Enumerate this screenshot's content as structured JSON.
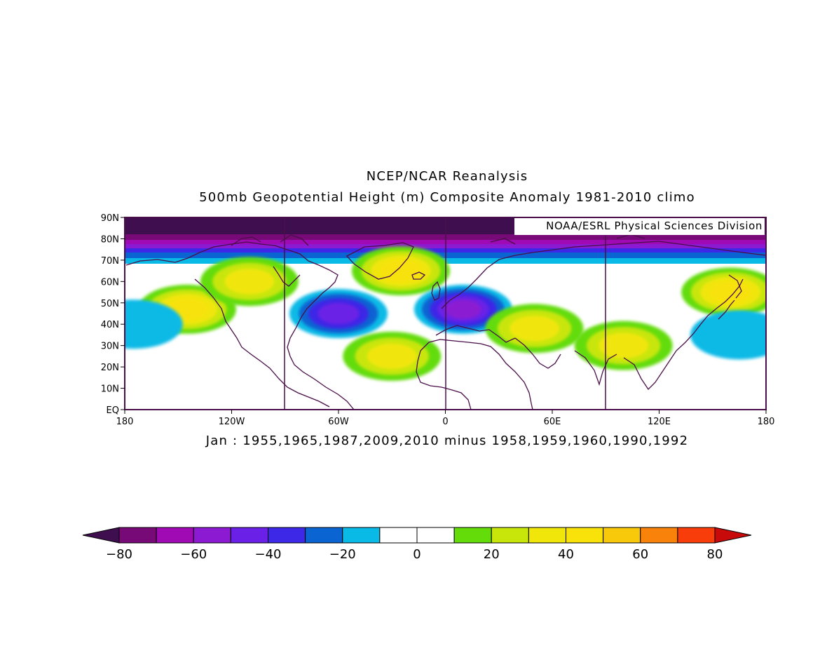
{
  "title_line1": "NCEP/NCAR Reanalysis",
  "title_line2": "500mb Geopotential Height (m) Composite Anomaly 1981-2010 climo",
  "credit": "NOAA/ESRL Physical Sciences Division",
  "subtitle": "Jan : 1955,1965,1987,2009,2010 minus 1958,1959,1960,1990,1992",
  "map": {
    "lon_range": [
      -180,
      180
    ],
    "lat_range": [
      0,
      90
    ],
    "lon_tick_labels": [
      "180",
      "120W",
      "60W",
      "0",
      "60E",
      "120E",
      "180"
    ],
    "lat_tick_labels": [
      "EQ",
      "10N",
      "20N",
      "30N",
      "40N",
      "50N",
      "60N",
      "70N",
      "80N",
      "90N"
    ],
    "anomaly_centers": [
      {
        "lon": -145,
        "lat": 47,
        "value": 45
      },
      {
        "lon": -110,
        "lat": 60,
        "value": 38
      },
      {
        "lon": -60,
        "lat": 45,
        "value": -45
      },
      {
        "lon": -25,
        "lat": 65,
        "value": 45
      },
      {
        "lon": -30,
        "lat": 25,
        "value": 35
      },
      {
        "lon": 10,
        "lat": 47,
        "value": -55
      },
      {
        "lon": 50,
        "lat": 38,
        "value": 35
      },
      {
        "lon": 100,
        "lat": 30,
        "value": 30
      },
      {
        "lon": 160,
        "lat": 55,
        "value": 42
      },
      {
        "lon": 165,
        "lat": 35,
        "value": -15
      },
      {
        "lon": -175,
        "lat": 40,
        "value": -15
      }
    ]
  },
  "colorbar": {
    "labels": [
      "-80",
      "-60",
      "-40",
      "-20",
      "0",
      "20",
      "40",
      "60",
      "80"
    ],
    "colors": [
      "#3e0e4e",
      "#780a78",
      "#a00ab4",
      "#8c1ad2",
      "#6a20e6",
      "#3c28e6",
      "#0a64d2",
      "#0abae6",
      "#ffffff",
      "#ffffff",
      "#64dc0a",
      "#c8e60a",
      "#f0e60a",
      "#f8e20a",
      "#f8c80a",
      "#f8820a",
      "#f83c0a",
      "#c80a0a"
    ]
  }
}
